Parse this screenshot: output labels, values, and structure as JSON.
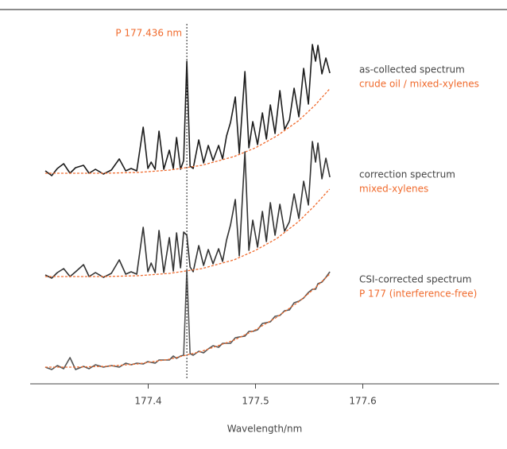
{
  "chart_data": {
    "type": "line",
    "x": [
      177.3041,
      177.3101,
      177.3153,
      177.3212,
      177.3271,
      177.3323,
      177.3397,
      177.3449,
      177.3508,
      177.3582,
      177.3656,
      177.373,
      177.379,
      177.3841,
      177.3893,
      177.3953,
      177.3997,
      177.4027,
      177.4064,
      177.4101,
      177.4145,
      177.4197,
      177.4234,
      177.4264,
      177.4301,
      177.433,
      177.436,
      177.439,
      177.4419,
      177.4471,
      177.4516,
      177.456,
      177.4604,
      177.4656,
      177.4693,
      177.473,
      177.4767,
      177.4812,
      177.4849,
      177.4901,
      177.4938,
      177.4975,
      177.5019,
      177.5064,
      177.5101,
      177.5138,
      177.5182,
      177.5227,
      177.5271,
      177.5316,
      177.536,
      177.5404,
      177.5449,
      177.5493,
      177.553,
      177.556,
      177.5582,
      177.5619,
      177.5656,
      177.5693
    ],
    "baseline_x": [
      177.304,
      177.33,
      177.36,
      177.39,
      177.42,
      177.45,
      177.48,
      177.5,
      177.52,
      177.54,
      177.555,
      177.569
    ],
    "baseline_color": "#f06a2c",
    "series": [
      {
        "name": "as-collected spectrum",
        "sample": "crude oil / mixed-xylenes",
        "color": "#1c1c1c",
        "values": [
          268,
          262,
          271,
          277,
          265,
          272,
          275,
          265,
          270,
          264,
          269,
          283,
          268,
          271,
          268,
          323,
          271,
          279,
          270,
          318,
          270,
          294,
          271,
          310,
          270,
          281,
          406,
          274,
          271,
          307,
          278,
          300,
          281,
          300,
          283,
          312,
          329,
          361,
          290,
          393,
          297,
          330,
          301,
          341,
          308,
          351,
          315,
          369,
          320,
          332,
          372,
          336,
          397,
          352,
          427,
          406,
          426,
          390,
          410,
          391
        ],
        "baseline": [
          265,
          265,
          265,
          266,
          269,
          275,
          286,
          297,
          312,
          331,
          350,
          371
        ]
      },
      {
        "name": "correction spectrum",
        "sample": "mixed-xylenes",
        "color": "#333333",
        "values": [
          137,
          133,
          140,
          145,
          135,
          141,
          150,
          135,
          140,
          134,
          139,
          156,
          138,
          141,
          138,
          197,
          141,
          152,
          140,
          193,
          140,
          184,
          142,
          190,
          146,
          191,
          187,
          147,
          141,
          174,
          149,
          169,
          151,
          170,
          154,
          181,
          200,
          232,
          161,
          292,
          168,
          206,
          172,
          217,
          179,
          228,
          187,
          226,
          192,
          204,
          239,
          208,
          255,
          225,
          305,
          279,
          303,
          258,
          284,
          260
        ],
        "baseline": [
          135,
          135,
          135,
          136,
          139,
          145,
          156,
          168,
          183,
          204,
          224,
          245
        ]
      },
      {
        "name": "CSI-corrected spectrum",
        "sample": "P 177 (interference-free)",
        "color": "#555555",
        "values": [
          21,
          18,
          23,
          19,
          33,
          18,
          22,
          19,
          24,
          21,
          23,
          21,
          26,
          24,
          26,
          25,
          28,
          27,
          26,
          30,
          30,
          30,
          35,
          32,
          35,
          36,
          143,
          38,
          36,
          41,
          39,
          44,
          48,
          46,
          51,
          51,
          51,
          58,
          59,
          60,
          66,
          66,
          68,
          76,
          77,
          78,
          85,
          86,
          92,
          93,
          102,
          104,
          108,
          115,
          119,
          119,
          126,
          128,
          134,
          141
        ],
        "baseline": [
          21,
          21,
          22,
          25,
          31,
          41,
          55,
          68,
          84,
          103,
          120,
          138
        ]
      }
    ],
    "reference_line": {
      "x": 177.436,
      "label": "P 177.436 nm"
    },
    "x_label": "Wavelength/nm",
    "xlim": [
      177.29,
      177.727
    ],
    "xticks": [
      177.4,
      177.5,
      177.6
    ],
    "ylim": [
      0,
      470
    ]
  }
}
